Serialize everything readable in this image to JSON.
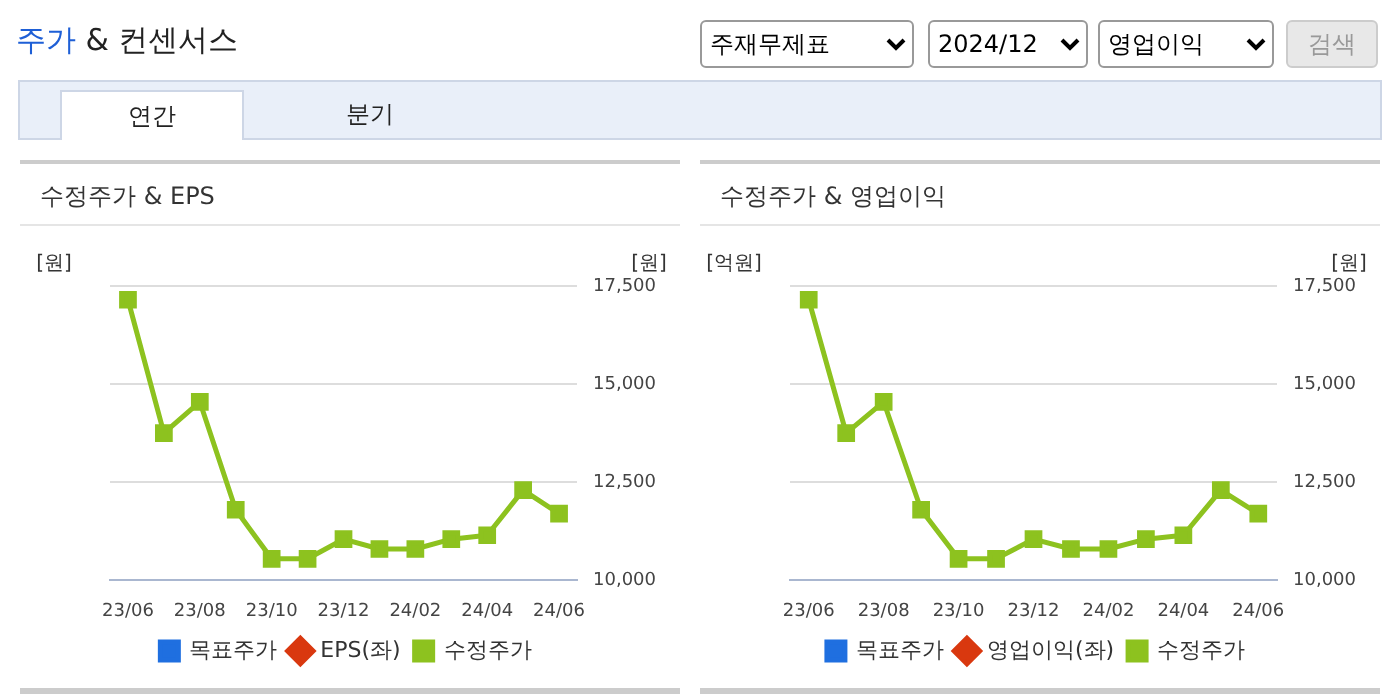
{
  "chart_data": [
    {
      "type": "other",
      "title": "주가 & 컨센서스",
      "annotations": [
        "주재무제표",
        "2024/12",
        "영업이익",
        "검색",
        "연간",
        "분기"
      ]
    },
    {
      "type": "line",
      "title": "수정주가 & EPS",
      "ylabel": "[원]",
      "y2label": "[원]",
      "categories": [
        "23/06",
        null,
        "23/08",
        null,
        "23/10",
        null,
        "23/12",
        null,
        "24/02",
        null,
        "24/04",
        null,
        "24/06"
      ],
      "y2lim": [
        10000,
        17500
      ],
      "y2ticks": [
        {
          "value": 10000,
          "label": "10,000"
        },
        {
          "value": 12500,
          "label": "12,500"
        },
        {
          "value": 15000,
          "label": "15,000"
        },
        {
          "value": 17500,
          "label": "17,500"
        }
      ],
      "grid": "y",
      "legend": "bottom",
      "tick_labels": "x",
      "series": [
        {
          "name": "목표주가",
          "color": "#1f6fe0",
          "marker": "square",
          "values": [
            null,
            null,
            null,
            null,
            null,
            null,
            null,
            null,
            null,
            null,
            null,
            null,
            null
          ]
        },
        {
          "name": "EPS(좌)",
          "color": "#d9380f",
          "marker": "diamond",
          "values": [
            null,
            null,
            null,
            null,
            null,
            null,
            null,
            null,
            null,
            null,
            null,
            null,
            null
          ]
        },
        {
          "name": "수정주가",
          "color": "#8dc21f",
          "marker": "square",
          "axis": "y2",
          "values": [
            17150,
            13750,
            14550,
            11800,
            10550,
            10550,
            11050,
            10800,
            10800,
            11050,
            11150,
            12300,
            11700
          ]
        }
      ]
    },
    {
      "type": "line",
      "title": "수정주가 & 영업이익",
      "ylabel": "[억원]",
      "y2label": "[원]",
      "categories": [
        "23/06",
        null,
        "23/08",
        null,
        "23/10",
        null,
        "23/12",
        null,
        "24/02",
        null,
        "24/04",
        null,
        "24/06"
      ],
      "y2lim": [
        10000,
        17500
      ],
      "y2ticks": [
        {
          "value": 10000,
          "label": "10,000"
        },
        {
          "value": 12500,
          "label": "12,500"
        },
        {
          "value": 15000,
          "label": "15,000"
        },
        {
          "value": 17500,
          "label": "17,500"
        }
      ],
      "grid": "y",
      "legend": "bottom",
      "tick_labels": "x",
      "series": [
        {
          "name": "목표주가",
          "color": "#1f6fe0",
          "marker": "square",
          "values": [
            null,
            null,
            null,
            null,
            null,
            null,
            null,
            null,
            null,
            null,
            null,
            null,
            null
          ]
        },
        {
          "name": "영업이익(좌)",
          "color": "#d9380f",
          "marker": "diamond",
          "values": [
            null,
            null,
            null,
            null,
            null,
            null,
            null,
            null,
            null,
            null,
            null,
            null,
            null
          ]
        },
        {
          "name": "수정주가",
          "color": "#8dc21f",
          "marker": "square",
          "axis": "y2",
          "values": [
            17150,
            13750,
            14550,
            11800,
            10550,
            10550,
            11050,
            10800,
            10800,
            11050,
            11150,
            12300,
            11700
          ]
        }
      ]
    }
  ]
}
